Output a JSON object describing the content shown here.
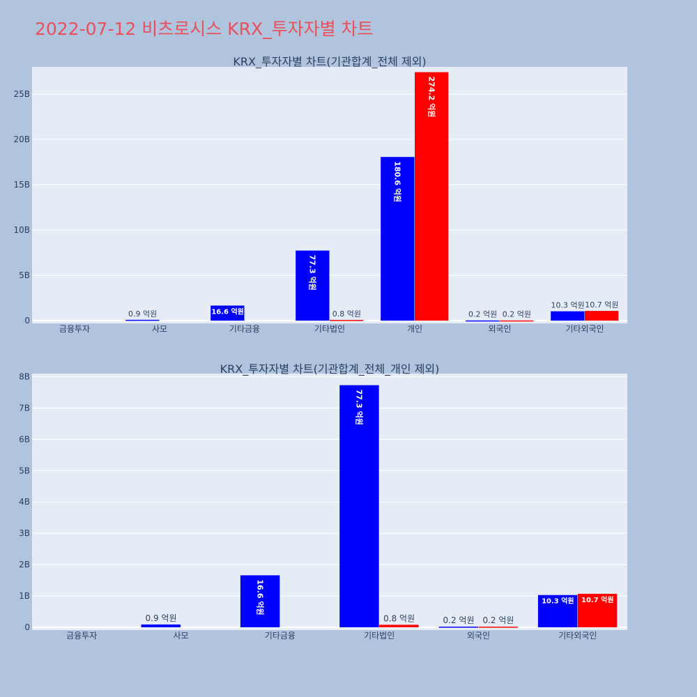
{
  "page": {
    "title": "2022-07-12 비츠로시스 KRX_투자자별 차트"
  },
  "colors": {
    "buy": "#0000ff",
    "sell": "#ff0000",
    "plot_bg": "#e5ecf6",
    "paper_bg": "#b0c4de",
    "grid": "#ffffff"
  },
  "chart_data": [
    {
      "type": "bar",
      "title": "KRX_투자자별 차트(기관합계_전체 제외)",
      "categories": [
        "금융투자",
        "사모",
        "기타금융",
        "기타법인",
        "개인",
        "외국인",
        "기타외국인"
      ],
      "series": [
        {
          "values": [
            0,
            90000000,
            1660000000,
            7730000000,
            18060000000,
            20000000,
            1030000000
          ],
          "labels": [
            "",
            "0.9 억원",
            "16.6 억원",
            "77.3 억원",
            "180.6 억원",
            "0.2 억원",
            "10.3 억원"
          ]
        },
        {
          "values": [
            0,
            0,
            0,
            80000000,
            27420000000,
            20000000,
            1070000000
          ],
          "labels": [
            "",
            "",
            "",
            "0.8 억원",
            "274.2 억원",
            "0.2 억원",
            "10.7 억원"
          ]
        }
      ],
      "ylim": [
        0,
        28000000000
      ],
      "yticks": [
        {
          "value": 0,
          "label": "0"
        },
        {
          "value": 5000000000,
          "label": "5B"
        },
        {
          "value": 10000000000,
          "label": "10B"
        },
        {
          "value": 15000000000,
          "label": "15B"
        },
        {
          "value": 20000000000,
          "label": "20B"
        },
        {
          "value": 25000000000,
          "label": "25B"
        }
      ],
      "grid": true,
      "legend": "none"
    },
    {
      "type": "bar",
      "title": "KRX_투자자별 차트(기관합계_전체_개인 제외)",
      "categories": [
        "금융투자",
        "사모",
        "기타금융",
        "기타법인",
        "외국인",
        "기타외국인"
      ],
      "series": [
        {
          "values": [
            0,
            90000000,
            1660000000,
            7730000000,
            20000000,
            1030000000
          ],
          "labels": [
            "",
            "0.9 억원",
            "16.6 억원",
            "77.3 억원",
            "0.2 억원",
            "10.3 억원"
          ]
        },
        {
          "values": [
            0,
            0,
            0,
            80000000,
            20000000,
            1070000000
          ],
          "labels": [
            "",
            "",
            "",
            "0.8 억원",
            "0.2 억원",
            "10.7 억원"
          ]
        }
      ],
      "ylim": [
        0,
        8100000000
      ],
      "yticks": [
        {
          "value": 0,
          "label": "0"
        },
        {
          "value": 1000000000,
          "label": "1B"
        },
        {
          "value": 2000000000,
          "label": "2B"
        },
        {
          "value": 3000000000,
          "label": "3B"
        },
        {
          "value": 4000000000,
          "label": "4B"
        },
        {
          "value": 5000000000,
          "label": "5B"
        },
        {
          "value": 6000000000,
          "label": "6B"
        },
        {
          "value": 7000000000,
          "label": "7B"
        },
        {
          "value": 8000000000,
          "label": "8B"
        }
      ],
      "grid": true,
      "legend": "none"
    }
  ]
}
